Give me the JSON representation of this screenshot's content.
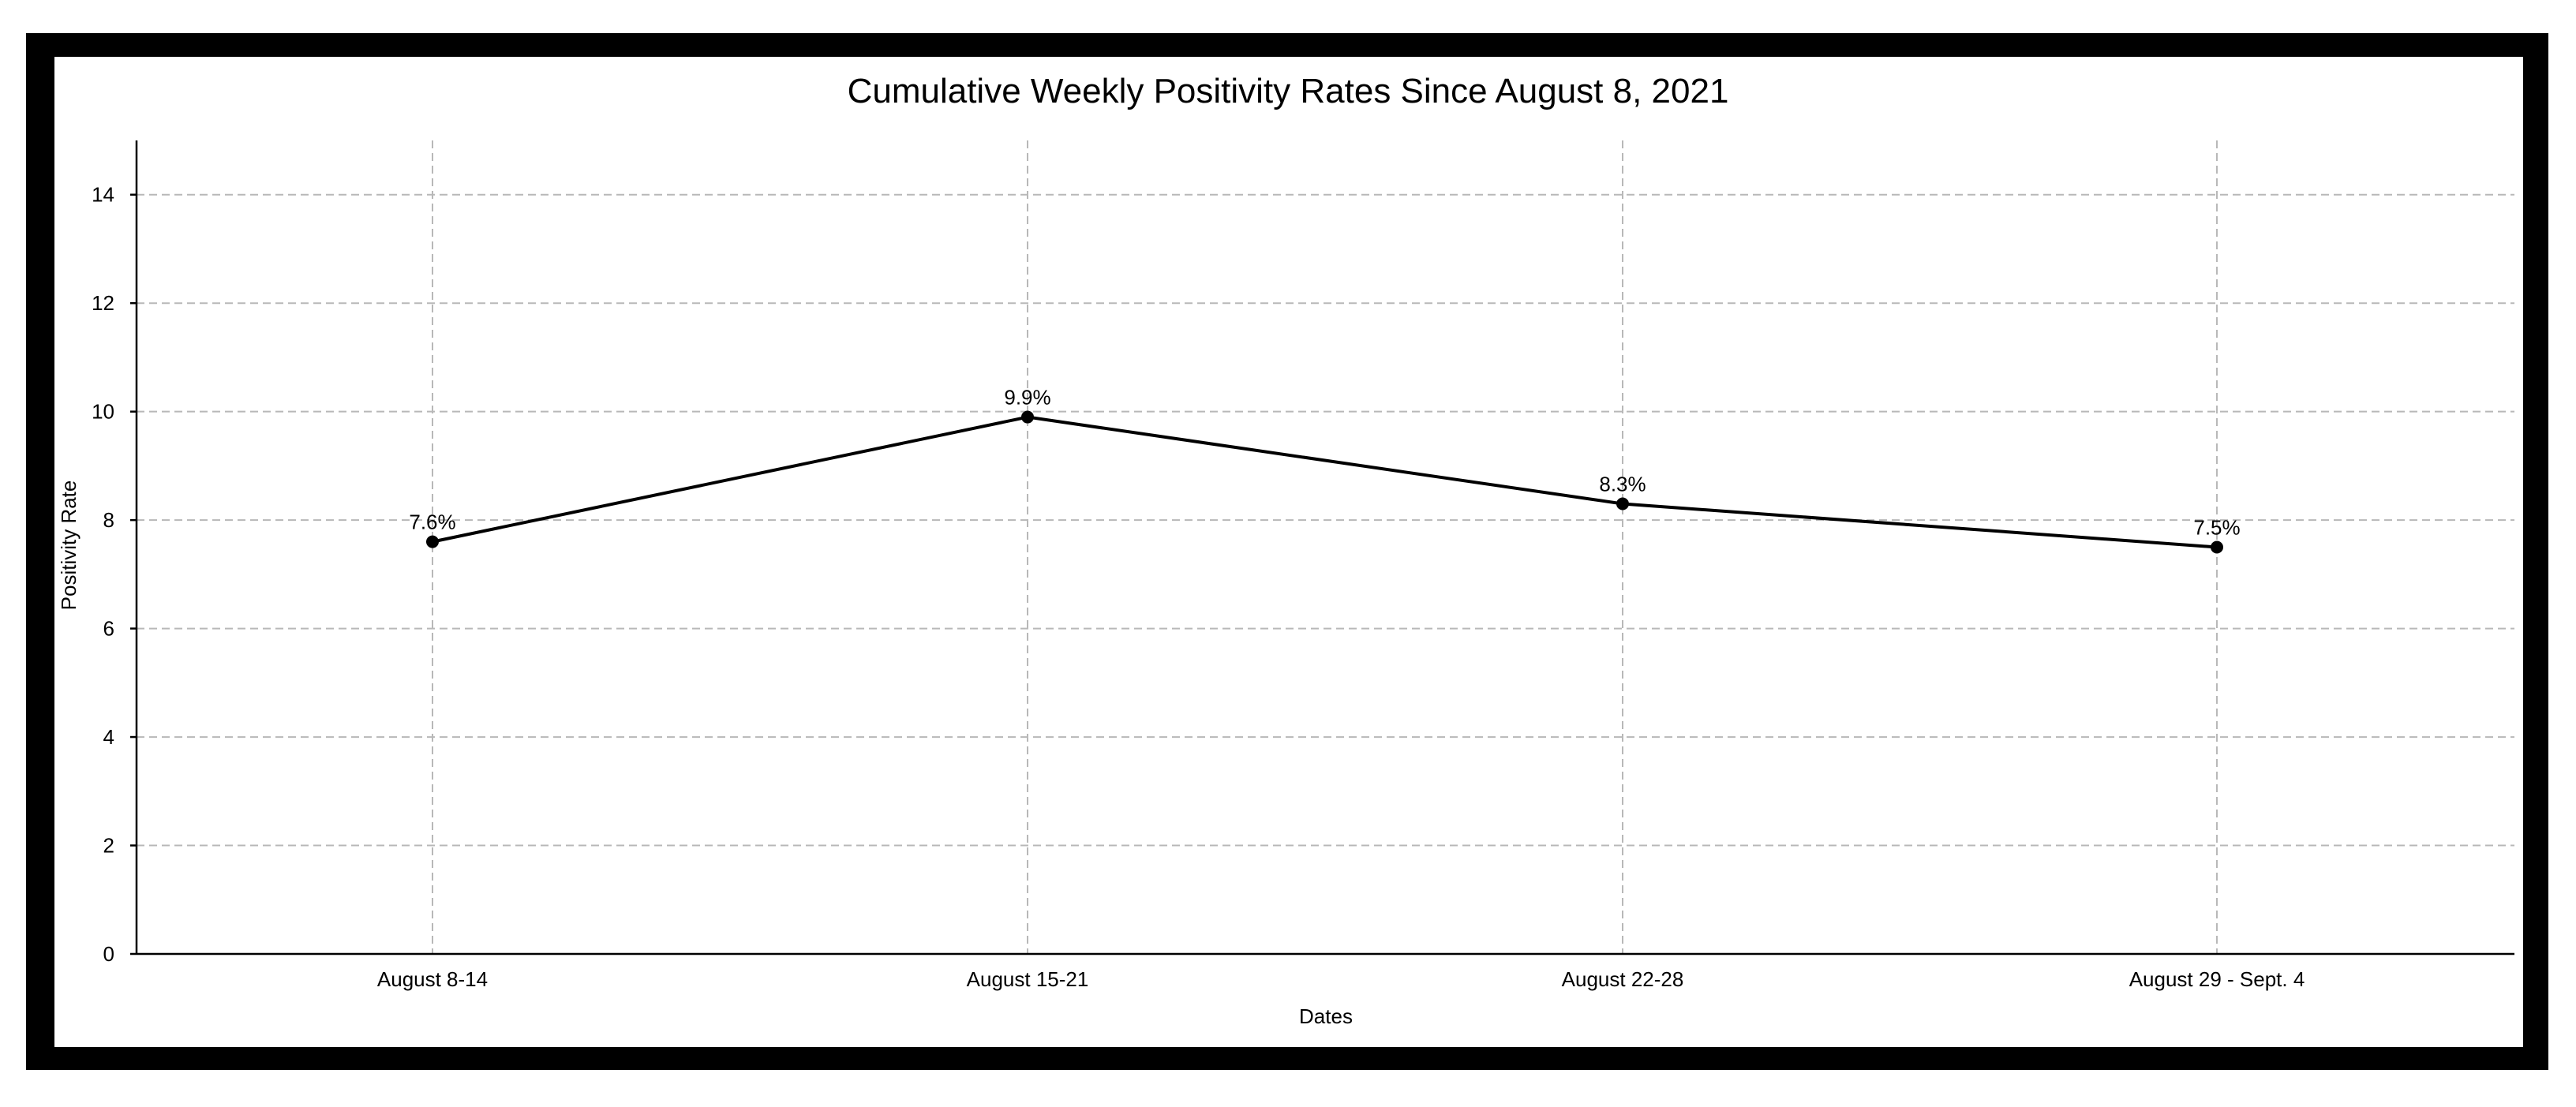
{
  "chart_data": {
    "type": "line",
    "title": "Cumulative Weekly Positivity Rates Since August 8, 2021",
    "xlabel": "Dates",
    "ylabel": "Positivity Rate",
    "categories": [
      "August 8-14",
      "August 15-21",
      "August 22-28",
      "August 29 - Sept. 4"
    ],
    "values": [
      7.6,
      9.9,
      8.3,
      7.5
    ],
    "data_labels": [
      "7.6%",
      "9.9%",
      "8.3%",
      "7.5%"
    ],
    "ylim": [
      0,
      15
    ],
    "yticks": [
      0,
      2,
      4,
      6,
      8,
      10,
      12,
      14
    ],
    "grid": true,
    "line_color": "#000000",
    "grid_color": "#b8b8b8"
  }
}
